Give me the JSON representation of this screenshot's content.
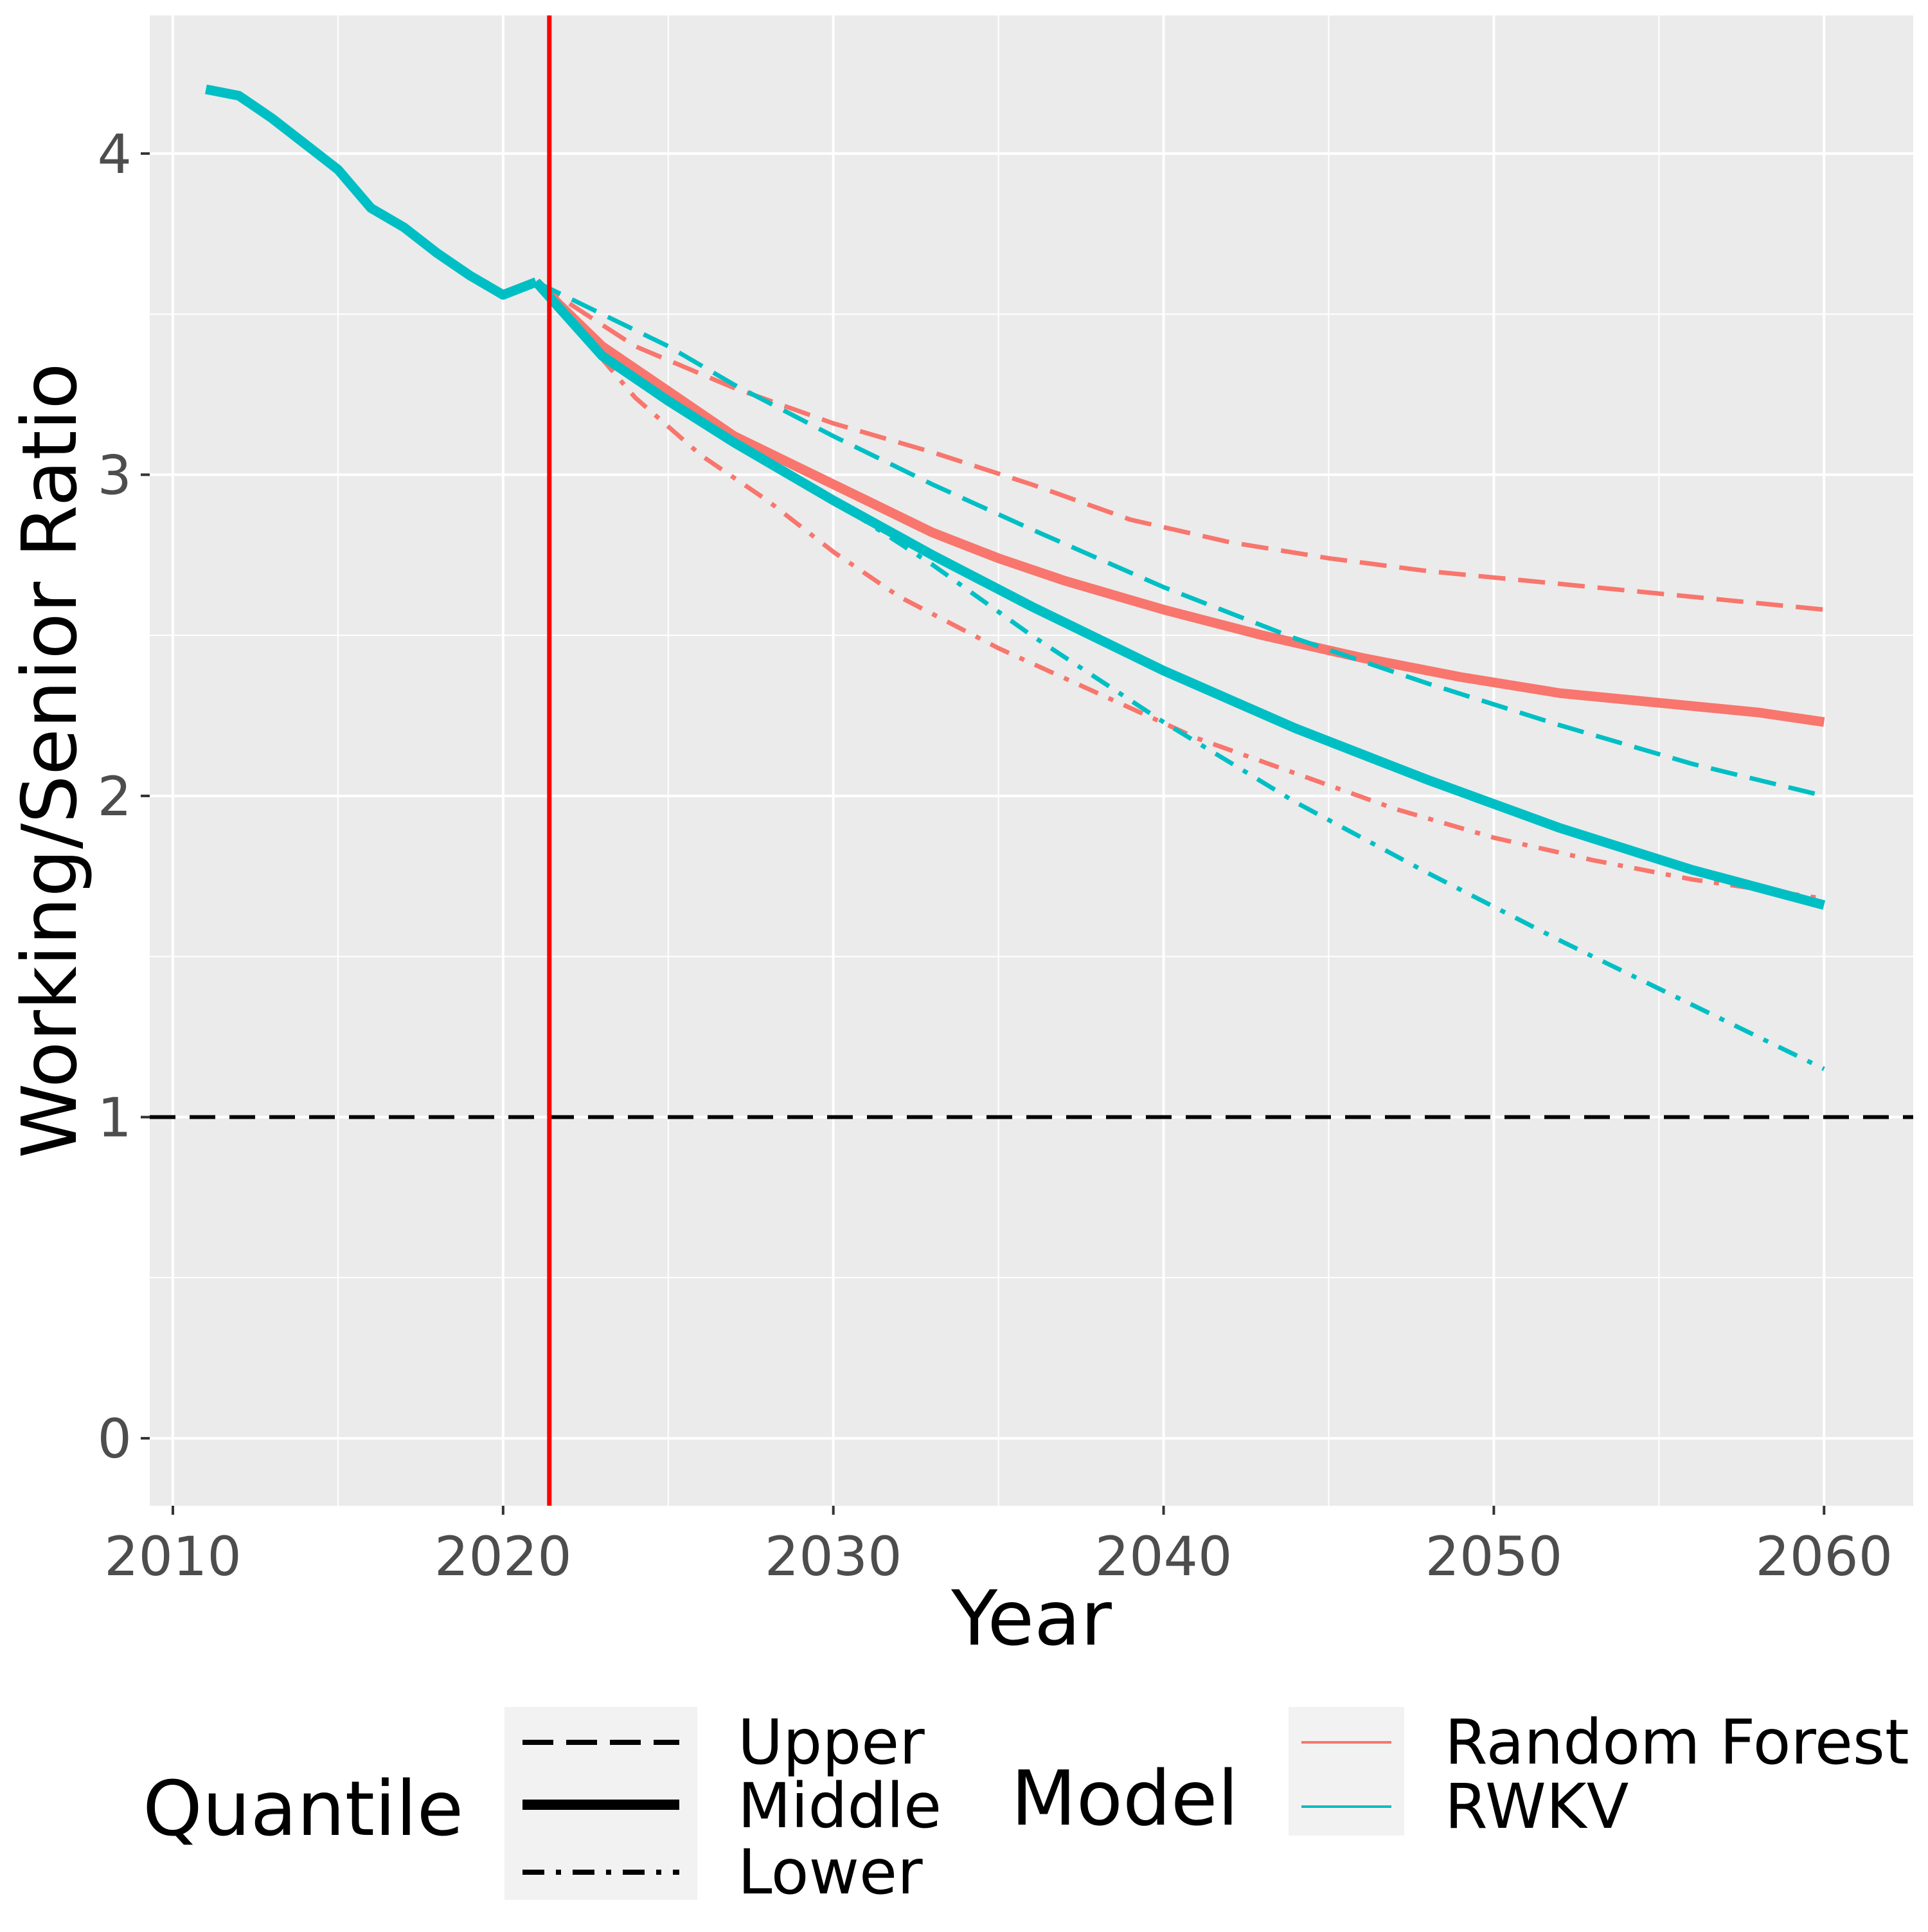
{
  "chart_data": {
    "type": "line",
    "xlabel": "Year",
    "ylabel": "Working/Senior Ratio",
    "xlim": [
      2009.3,
      2062.7
    ],
    "ylim": [
      -0.21,
      4.43
    ],
    "x_ticks": [
      2010,
      2020,
      2030,
      2040,
      2050,
      2060
    ],
    "y_ticks": [
      0,
      1,
      2,
      3,
      4
    ],
    "x_tick_labels": [
      "2010",
      "2020",
      "2030",
      "2040",
      "2050",
      "2060"
    ],
    "y_tick_labels": [
      "0",
      "1",
      "2",
      "3",
      "4"
    ],
    "grid": true,
    "panel_background": "#ebebeb",
    "colors": {
      "Random Forest": "#f8766d",
      "RWKV": "#00bfc4"
    },
    "reference_lines": [
      {
        "orientation": "horizontal",
        "value": 1,
        "color": "#000000",
        "linetype": "dashed"
      },
      {
        "orientation": "vertical",
        "value": 2021.4,
        "color": "#ff0000",
        "linetype": "solid"
      }
    ],
    "series": [
      {
        "model": "RWKV",
        "quantile": "Middle",
        "x": [
          2011,
          2012,
          2013,
          2014,
          2015,
          2016,
          2017,
          2018,
          2019,
          2020,
          2021
        ],
        "y": [
          4.2,
          4.18,
          4.11,
          4.03,
          3.95,
          3.83,
          3.77,
          3.69,
          3.62,
          3.56,
          3.6
        ]
      },
      {
        "model": "Random Forest",
        "quantile": "Upper",
        "x": [
          2021,
          2024,
          2027,
          2030,
          2033,
          2036,
          2039,
          2042,
          2045,
          2048,
          2051,
          2054,
          2057,
          2060
        ],
        "y": [
          3.6,
          3.4,
          3.27,
          3.16,
          3.07,
          2.97,
          2.86,
          2.79,
          2.74,
          2.7,
          2.67,
          2.64,
          2.61,
          2.58
        ]
      },
      {
        "model": "Random Forest",
        "quantile": "Middle",
        "x": [
          2021,
          2023,
          2025,
          2027,
          2029,
          2031,
          2033,
          2035,
          2037,
          2040,
          2043,
          2046,
          2049,
          2052,
          2055,
          2058,
          2060
        ],
        "y": [
          3.6,
          3.4,
          3.26,
          3.12,
          3.02,
          2.92,
          2.82,
          2.74,
          2.67,
          2.58,
          2.5,
          2.43,
          2.37,
          2.32,
          2.29,
          2.26,
          2.23
        ]
      },
      {
        "model": "Random Forest",
        "quantile": "Lower",
        "x": [
          2021,
          2024,
          2026,
          2028,
          2030,
          2032,
          2035,
          2038,
          2041,
          2044,
          2047,
          2050,
          2053,
          2056,
          2060
        ],
        "y": [
          3.6,
          3.24,
          3.06,
          2.92,
          2.76,
          2.62,
          2.46,
          2.32,
          2.18,
          2.07,
          1.96,
          1.87,
          1.8,
          1.74,
          1.68
        ]
      },
      {
        "model": "RWKV",
        "quantile": "Upper",
        "x": [
          2021,
          2023,
          2025,
          2027,
          2030,
          2033,
          2036,
          2040,
          2044,
          2048,
          2052,
          2056,
          2060
        ],
        "y": [
          3.6,
          3.5,
          3.4,
          3.28,
          3.12,
          2.97,
          2.83,
          2.65,
          2.49,
          2.35,
          2.22,
          2.1,
          2.0
        ]
      },
      {
        "model": "RWKV",
        "quantile": "Middle",
        "x": [
          2021,
          2023,
          2025,
          2027,
          2030,
          2033,
          2036,
          2040,
          2044,
          2048,
          2052,
          2056,
          2060
        ],
        "y": [
          3.6,
          3.37,
          3.23,
          3.1,
          2.92,
          2.75,
          2.59,
          2.39,
          2.21,
          2.05,
          1.9,
          1.77,
          1.66
        ]
      },
      {
        "model": "RWKV",
        "quantile": "Lower",
        "x": [
          2021,
          2023,
          2025,
          2027,
          2030,
          2033,
          2036,
          2040,
          2044,
          2048,
          2052,
          2056,
          2060
        ],
        "y": [
          3.6,
          3.37,
          3.23,
          3.1,
          2.92,
          2.72,
          2.5,
          2.23,
          1.98,
          1.76,
          1.55,
          1.35,
          1.15
        ]
      }
    ]
  },
  "legend": {
    "quantile": {
      "title": "Quantile",
      "items": [
        {
          "label": "Upper",
          "linetype": "dashed"
        },
        {
          "label": "Middle",
          "linetype": "solid"
        },
        {
          "label": "Lower",
          "linetype": "dotdash"
        }
      ]
    },
    "model": {
      "title": "Model",
      "items": [
        {
          "label": "Random Forest",
          "color": "#f8766d"
        },
        {
          "label": "RWKV",
          "color": "#00bfc4"
        }
      ]
    }
  }
}
